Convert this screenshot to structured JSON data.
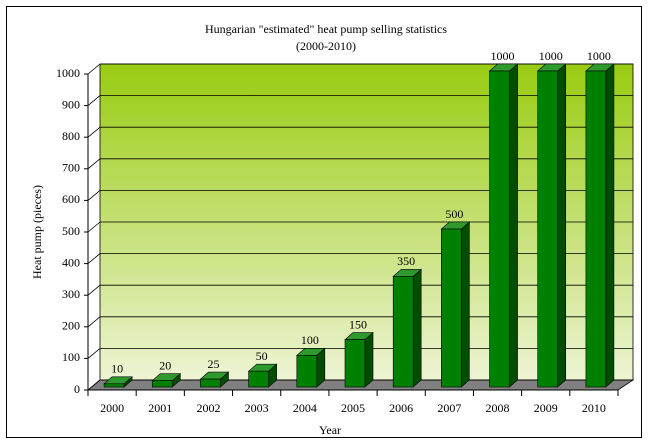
{
  "chart_data": {
    "type": "bar3d",
    "title": "Hungarian \"estimated\" heat pump selling statistics",
    "subtitle": "(2000-2010)",
    "x_label": "Year",
    "y_label": "Heat pump (pieces)",
    "categories": [
      "2000",
      "2001",
      "2002",
      "2003",
      "2004",
      "2005",
      "2006",
      "2007",
      "2008",
      "2009",
      "2010"
    ],
    "values": [
      10,
      20,
      25,
      50,
      100,
      150,
      350,
      500,
      1000,
      1000,
      1000
    ],
    "color": "#008000",
    "ylim": [
      0,
      1000
    ],
    "yticks": [
      0,
      100,
      200,
      300,
      400,
      500,
      600,
      700,
      800,
      900,
      1000
    ],
    "grid": true
  }
}
